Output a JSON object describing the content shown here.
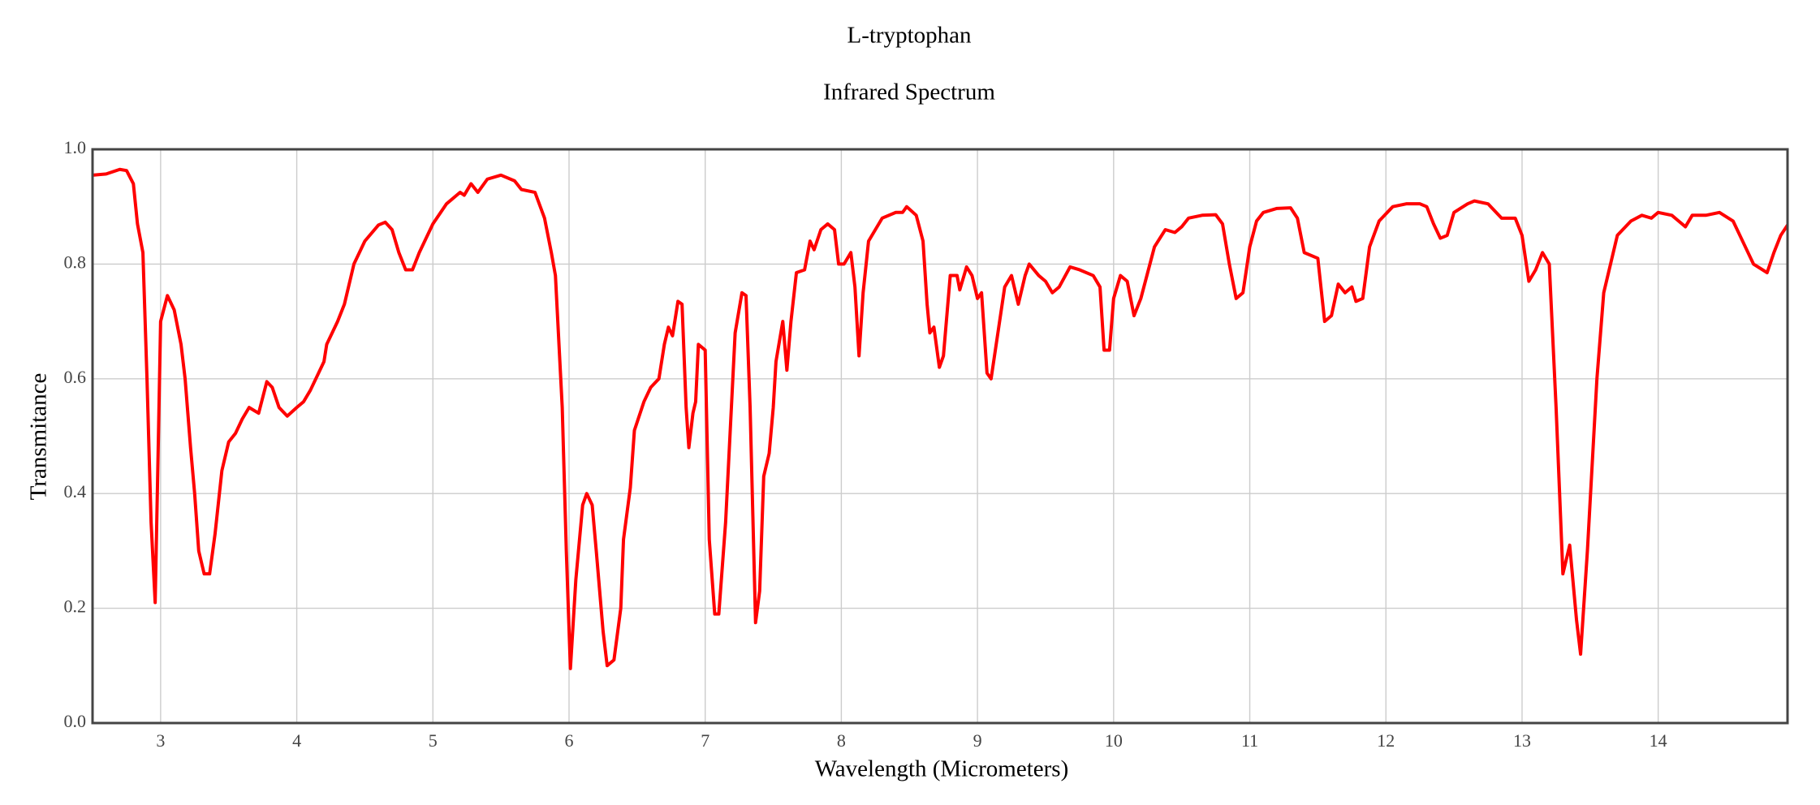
{
  "chart_data": {
    "type": "line",
    "title": "L-tryptophan",
    "subtitle": "Infrared Spectrum",
    "x_label": "Wavelength (Micrometers)",
    "y_label": "Transmitance",
    "color": "#ff0000",
    "grid": true,
    "xlim": [
      2.5,
      14.95
    ],
    "ylim": [
      0,
      1
    ],
    "xticks": [
      3,
      4,
      5,
      6,
      7,
      8,
      9,
      10,
      11,
      12,
      13,
      14
    ],
    "yticks": [
      {
        "value": 0,
        "label": "0.0"
      },
      0.2,
      0.4,
      0.6,
      0.8,
      {
        "value": 1,
        "label": "1.0"
      }
    ],
    "x": [
      2.5,
      2.6,
      2.7,
      2.75,
      2.8,
      2.83,
      2.87,
      2.9,
      2.93,
      2.96,
      2.98,
      3.0,
      3.05,
      3.1,
      3.15,
      3.18,
      3.22,
      3.25,
      3.28,
      3.32,
      3.36,
      3.4,
      3.45,
      3.5,
      3.55,
      3.6,
      3.65,
      3.72,
      3.78,
      3.82,
      3.87,
      3.93,
      4.0,
      4.05,
      4.1,
      4.2,
      4.22,
      4.3,
      4.35,
      4.42,
      4.5,
      4.6,
      4.65,
      4.7,
      4.75,
      4.8,
      4.85,
      4.9,
      5.0,
      5.1,
      5.2,
      5.23,
      5.28,
      5.33,
      5.4,
      5.5,
      5.6,
      5.65,
      5.75,
      5.82,
      5.87,
      5.9,
      5.95,
      5.98,
      6.01,
      6.05,
      6.1,
      6.13,
      6.17,
      6.2,
      6.25,
      6.28,
      6.33,
      6.38,
      6.4,
      6.45,
      6.48,
      6.55,
      6.6,
      6.66,
      6.7,
      6.73,
      6.76,
      6.8,
      6.83,
      6.86,
      6.88,
      6.91,
      6.93,
      6.95,
      7.0,
      7.03,
      7.07,
      7.1,
      7.15,
      7.22,
      7.27,
      7.3,
      7.33,
      7.37,
      7.4,
      7.43,
      7.47,
      7.5,
      7.52,
      7.57,
      7.6,
      7.63,
      7.67,
      7.73,
      7.77,
      7.8,
      7.85,
      7.9,
      7.95,
      7.98,
      8.02,
      8.07,
      8.1,
      8.13,
      8.16,
      8.2,
      8.3,
      8.4,
      8.45,
      8.48,
      8.55,
      8.6,
      8.63,
      8.65,
      8.68,
      8.72,
      8.75,
      8.8,
      8.85,
      8.87,
      8.92,
      8.96,
      9.0,
      9.03,
      9.07,
      9.1,
      9.15,
      9.2,
      9.25,
      9.3,
      9.35,
      9.38,
      9.45,
      9.5,
      9.55,
      9.6,
      9.68,
      9.75,
      9.85,
      9.9,
      9.93,
      9.97,
      10.0,
      10.05,
      10.1,
      10.15,
      10.2,
      10.3,
      10.38,
      10.45,
      10.5,
      10.55,
      10.65,
      10.75,
      10.8,
      10.85,
      10.9,
      10.95,
      11.0,
      11.05,
      11.1,
      11.2,
      11.3,
      11.35,
      11.4,
      11.5,
      11.55,
      11.6,
      11.65,
      11.7,
      11.75,
      11.78,
      11.83,
      11.88,
      11.95,
      12.05,
      12.15,
      12.25,
      12.3,
      12.35,
      12.4,
      12.45,
      12.5,
      12.6,
      12.65,
      12.75,
      12.85,
      12.95,
      13.0,
      13.05,
      13.1,
      13.15,
      13.2,
      13.25,
      13.3,
      13.35,
      13.4,
      13.43,
      13.48,
      13.55,
      13.6,
      13.7,
      13.8,
      13.88,
      13.95,
      14.0,
      14.1,
      14.15,
      14.2,
      14.25,
      14.35,
      14.45,
      14.55,
      14.6,
      14.7,
      14.8,
      14.85,
      14.9,
      14.95
    ],
    "values": [
      0.955,
      0.957,
      0.965,
      0.963,
      0.94,
      0.87,
      0.82,
      0.6,
      0.35,
      0.21,
      0.45,
      0.7,
      0.745,
      0.72,
      0.66,
      0.6,
      0.48,
      0.4,
      0.3,
      0.26,
      0.26,
      0.33,
      0.44,
      0.49,
      0.505,
      0.53,
      0.55,
      0.54,
      0.595,
      0.585,
      0.55,
      0.535,
      0.55,
      0.56,
      0.58,
      0.63,
      0.66,
      0.7,
      0.73,
      0.8,
      0.84,
      0.868,
      0.873,
      0.86,
      0.82,
      0.79,
      0.79,
      0.82,
      0.87,
      0.905,
      0.925,
      0.92,
      0.94,
      0.925,
      0.948,
      0.955,
      0.945,
      0.93,
      0.925,
      0.88,
      0.82,
      0.78,
      0.55,
      0.3,
      0.095,
      0.25,
      0.38,
      0.4,
      0.38,
      0.3,
      0.16,
      0.1,
      0.11,
      0.2,
      0.32,
      0.41,
      0.51,
      0.56,
      0.585,
      0.6,
      0.66,
      0.69,
      0.675,
      0.735,
      0.73,
      0.55,
      0.48,
      0.54,
      0.56,
      0.66,
      0.65,
      0.32,
      0.19,
      0.19,
      0.35,
      0.68,
      0.75,
      0.745,
      0.55,
      0.175,
      0.23,
      0.43,
      0.47,
      0.55,
      0.63,
      0.7,
      0.615,
      0.7,
      0.785,
      0.79,
      0.84,
      0.825,
      0.86,
      0.87,
      0.86,
      0.8,
      0.8,
      0.82,
      0.76,
      0.64,
      0.75,
      0.84,
      0.88,
      0.89,
      0.89,
      0.9,
      0.885,
      0.84,
      0.73,
      0.68,
      0.69,
      0.62,
      0.64,
      0.78,
      0.78,
      0.755,
      0.795,
      0.78,
      0.74,
      0.75,
      0.61,
      0.6,
      0.68,
      0.76,
      0.78,
      0.73,
      0.78,
      0.8,
      0.78,
      0.77,
      0.75,
      0.76,
      0.795,
      0.79,
      0.78,
      0.76,
      0.65,
      0.65,
      0.74,
      0.78,
      0.77,
      0.71,
      0.74,
      0.83,
      0.86,
      0.855,
      0.865,
      0.88,
      0.885,
      0.886,
      0.87,
      0.8,
      0.74,
      0.75,
      0.83,
      0.875,
      0.89,
      0.897,
      0.898,
      0.88,
      0.82,
      0.81,
      0.7,
      0.71,
      0.765,
      0.75,
      0.76,
      0.735,
      0.74,
      0.83,
      0.875,
      0.9,
      0.905,
      0.905,
      0.9,
      0.87,
      0.845,
      0.85,
      0.89,
      0.905,
      0.91,
      0.905,
      0.88,
      0.88,
      0.85,
      0.77,
      0.79,
      0.82,
      0.8,
      0.55,
      0.26,
      0.31,
      0.18,
      0.12,
      0.3,
      0.6,
      0.75,
      0.85,
      0.875,
      0.885,
      0.88,
      0.89,
      0.885,
      0.875,
      0.865,
      0.885,
      0.885,
      0.89,
      0.875,
      0.85,
      0.8,
      0.785,
      0.82,
      0.85,
      0.868
    ]
  }
}
